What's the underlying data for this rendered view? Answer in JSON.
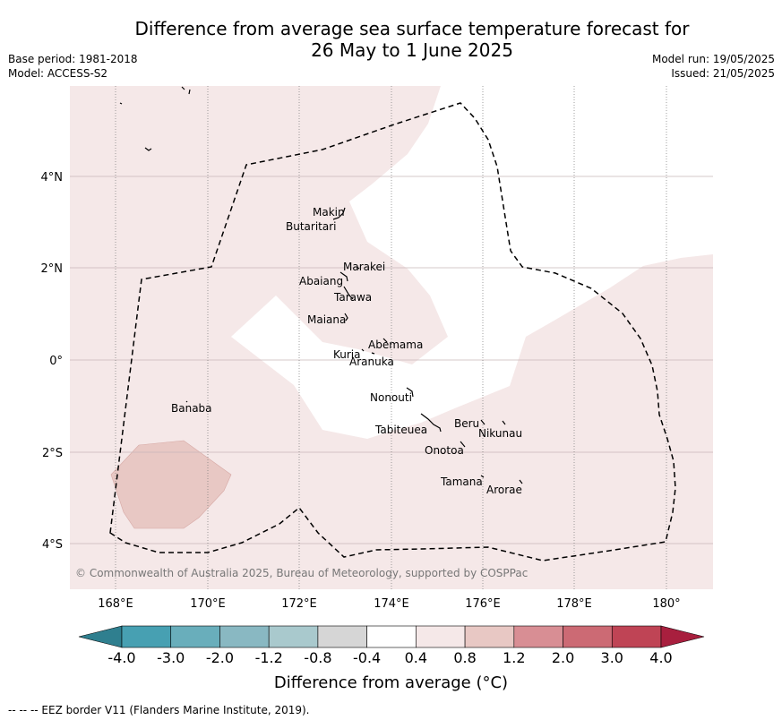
{
  "title_line1": "Difference from average sea surface temperature forecast for",
  "title_line2": "26 May to 1 June 2025",
  "base_period": "Base period: 1981-2018",
  "model": "Model: ACCESS-S2",
  "model_run": "Model run: 19/05/2025",
  "issued": "Issued: 21/05/2025",
  "lat_labels": [
    "4°N",
    "2°N",
    "0°",
    "2°S",
    "4°S"
  ],
  "lon_labels": [
    "168°E",
    "170°E",
    "172°E",
    "174°E",
    "176°E",
    "178°E",
    "180°"
  ],
  "islands": [
    "Makin",
    "Butaritari",
    "Marakei",
    "Abaiang",
    "Tarawa",
    "Maiana",
    "Abemama",
    "Kuria",
    "Aranuka",
    "Nonouti",
    "Banaba",
    "Beru",
    "Nikunau",
    "Tabiteuea",
    "Onotoa",
    "Tamana",
    "Arorae"
  ],
  "copyright": "© Commonwealth of Australia 2025, Bureau of Meteorology, supported by COSPPac",
  "colorbar": {
    "ticks": [
      "-4.0",
      "-3.0",
      "-2.0",
      "-1.2",
      "-0.8",
      "-0.4",
      "0.4",
      "0.8",
      "1.2",
      "2.0",
      "3.0",
      "4.0"
    ],
    "colors": [
      "#2f7f8f",
      "#47a0b2",
      "#69aebb",
      "#89b8c2",
      "#a9c9cd",
      "#d6d6d6",
      "#ffffff",
      "#f5e8e8",
      "#e8c8c4",
      "#d88e94",
      "#cc6a74",
      "#bf4455",
      "#a81f3e"
    ],
    "label": "Difference from average (°C)"
  },
  "footer": "--  --  -- EEZ border V11 (Flanders Marine Institute, 2019)."
}
